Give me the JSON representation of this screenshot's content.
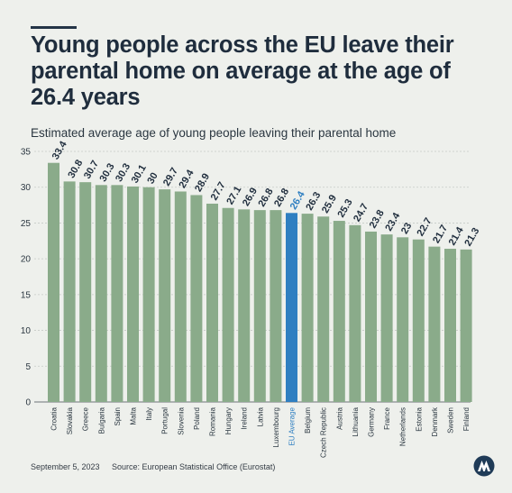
{
  "title": "Young people across the EU leave their parental home on average at the age of 26.4 years",
  "subtitle": "Estimated average age of young people leaving their parental home",
  "footer": {
    "date": "September 5, 2023",
    "source": "Source: European Statistical Office (Eurostat)"
  },
  "colors": {
    "bar": "#8aab8a",
    "highlight_bar": "#2f7fc1",
    "highlight_label": "#2f7fc1",
    "background": "#eef0ec",
    "title": "#1f2d3d"
  },
  "chart_data": {
    "type": "bar",
    "categories": [
      "Croatia",
      "Slovakia",
      "Greece",
      "Bulgaria",
      "Spain",
      "Malta",
      "Italy",
      "Portugal",
      "Slovenia",
      "Poland",
      "Romania",
      "Hungary",
      "Ireland",
      "Latvia",
      "Luxembourg",
      "EU Average",
      "Belgium",
      "Czech Republic",
      "Austria",
      "Lithuania",
      "Germany",
      "France",
      "Netherlands",
      "Estonia",
      "Denmark",
      "Sweden",
      "Finland"
    ],
    "values": [
      33.4,
      30.8,
      30.7,
      30.3,
      30.3,
      30.1,
      30,
      29.7,
      29.4,
      28.9,
      27.7,
      27.1,
      26.9,
      26.8,
      26.8,
      26.4,
      26.3,
      25.9,
      25.3,
      24.7,
      23.8,
      23.4,
      23,
      22.7,
      21.7,
      21.4,
      21.3
    ],
    "value_labels": [
      "33.4",
      "30.8",
      "30.7",
      "30.3",
      "30.3",
      "30.1",
      "30",
      "29.7",
      "29.4",
      "28.9",
      "27.7",
      "27.1",
      "26.9",
      "26.8",
      "26.8",
      "26.4",
      "26.3",
      "25.9",
      "25.3",
      "24.7",
      "23.8",
      "23.4",
      "23",
      "22.7",
      "21.7",
      "21.4",
      "21.3"
    ],
    "highlight_category": "EU Average",
    "ylim": [
      0,
      35
    ],
    "yticks": [
      0,
      5,
      10,
      15,
      20,
      25,
      30,
      35
    ],
    "grid": true,
    "xlabel": "",
    "ylabel": ""
  }
}
